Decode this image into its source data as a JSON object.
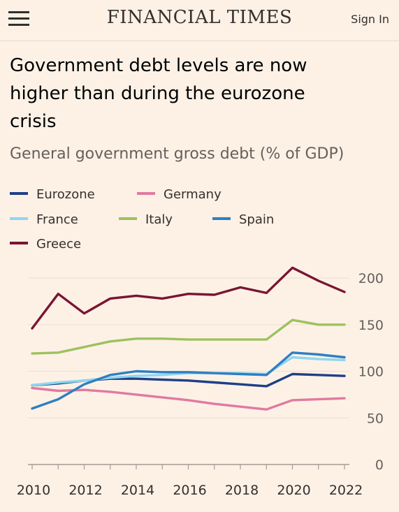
{
  "header": {
    "masthead": "FINANCIAL TIMES",
    "menu_icon": "hamburger-menu-icon",
    "sign_in_label": "Sign In"
  },
  "article": {
    "headline_lines": [
      "Government debt levels are now",
      "higher than during the eurozone",
      "crisis"
    ]
  },
  "chart_data": {
    "type": "line",
    "title": "",
    "subtitle": "General government gross debt (% of GDP)",
    "xlabel": "",
    "ylabel": "",
    "x": [
      2010,
      2011,
      2012,
      2013,
      2014,
      2015,
      2016,
      2017,
      2018,
      2019,
      2020,
      2021,
      2022
    ],
    "x_tick_labels": [
      "2010",
      "2012",
      "2014",
      "2016",
      "2018",
      "2020",
      "2022"
    ],
    "y_tick_labels": [
      "0",
      "50",
      "100",
      "150",
      "200"
    ],
    "ylim": [
      0,
      200
    ],
    "xlim": [
      2010,
      2022
    ],
    "grid": "horizontal",
    "legend_position": "top",
    "series": [
      {
        "name": "Eurozone",
        "color": "#1f3f87",
        "values": [
          85,
          87,
          90,
          92,
          92,
          91,
          90,
          88,
          86,
          84,
          97,
          96,
          95
        ]
      },
      {
        "name": "Germany",
        "color": "#e07aa0",
        "values": [
          82,
          79,
          80,
          78,
          75,
          72,
          69,
          65,
          62,
          59,
          69,
          70,
          71
        ]
      },
      {
        "name": "France",
        "color": "#8fd6ef",
        "values": [
          85,
          88,
          90,
          93,
          95,
          96,
          98,
          98,
          98,
          97,
          115,
          113,
          112
        ]
      },
      {
        "name": "Italy",
        "color": "#9cc25d",
        "values": [
          119,
          120,
          126,
          132,
          135,
          135,
          134,
          134,
          134,
          134,
          155,
          150,
          150
        ]
      },
      {
        "name": "Spain",
        "color": "#2e7fc3",
        "values": [
          60,
          70,
          86,
          96,
          100,
          99,
          99,
          98,
          97,
          96,
          120,
          118,
          115
        ]
      },
      {
        "name": "Greece",
        "color": "#7a1532",
        "values": [
          146,
          183,
          162,
          178,
          181,
          178,
          183,
          182,
          190,
          184,
          211,
          197,
          185
        ]
      }
    ]
  }
}
